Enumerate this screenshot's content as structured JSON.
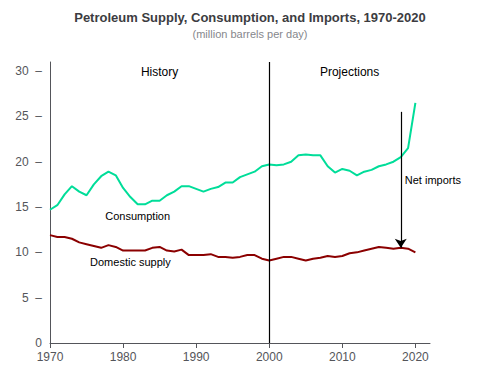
{
  "chart_data": {
    "type": "line",
    "title": "Petroleum Supply, Consumption, and Imports, 1970-2020",
    "subtitle": "(million barrels per day)",
    "x": [
      1970,
      1971,
      1972,
      1973,
      1974,
      1975,
      1976,
      1977,
      1978,
      1979,
      1980,
      1981,
      1982,
      1983,
      1984,
      1985,
      1986,
      1987,
      1988,
      1989,
      1990,
      1991,
      1992,
      1993,
      1994,
      1995,
      1996,
      1997,
      1998,
      1999,
      2000,
      2001,
      2002,
      2003,
      2004,
      2005,
      2006,
      2007,
      2008,
      2009,
      2010,
      2011,
      2012,
      2013,
      2014,
      2015,
      2016,
      2017,
      2018,
      2019,
      2020
    ],
    "series": [
      {
        "name": "Consumption",
        "color": "#00DD99",
        "values": [
          14.7,
          15.2,
          16.4,
          17.3,
          16.7,
          16.3,
          17.5,
          18.4,
          18.9,
          18.5,
          17.1,
          16.1,
          15.3,
          15.3,
          15.7,
          15.7,
          16.3,
          16.7,
          17.3,
          17.3,
          17.0,
          16.7,
          17.0,
          17.2,
          17.7,
          17.7,
          18.3,
          18.6,
          18.9,
          19.5,
          19.7,
          19.6,
          19.7,
          20.0,
          20.7,
          20.8,
          20.7,
          20.7,
          19.5,
          18.8,
          19.2,
          19.0,
          18.5,
          18.9,
          19.1,
          19.5,
          19.7,
          20.0,
          20.5,
          21.5,
          26.5
        ]
      },
      {
        "name": "Domestic supply",
        "color": "#8B0000",
        "values": [
          11.9,
          11.7,
          11.7,
          11.5,
          11.1,
          10.9,
          10.7,
          10.5,
          10.8,
          10.6,
          10.2,
          10.2,
          10.2,
          10.2,
          10.5,
          10.6,
          10.2,
          10.1,
          10.3,
          9.7,
          9.7,
          9.7,
          9.8,
          9.5,
          9.5,
          9.4,
          9.5,
          9.7,
          9.7,
          9.3,
          9.1,
          9.3,
          9.5,
          9.5,
          9.3,
          9.1,
          9.3,
          9.4,
          9.6,
          9.5,
          9.6,
          9.9,
          10.0,
          10.2,
          10.4,
          10.6,
          10.5,
          10.4,
          10.5,
          10.4,
          10.0
        ]
      }
    ],
    "xlim": [
      1970,
      2022
    ],
    "xticks": [
      1970,
      1980,
      1990,
      2000,
      2010,
      2020
    ],
    "ylim": [
      0,
      31
    ],
    "yticks": [
      0,
      {
        "value": 5,
        "label": "5  –"
      },
      {
        "value": 10,
        "label": "10  –"
      },
      {
        "value": 15,
        "label": "15  –"
      },
      {
        "value": 20,
        "label": "20  –"
      },
      {
        "value": 25,
        "label": "25  –"
      },
      {
        "value": 30,
        "label": "30  –"
      }
    ],
    "grid": false,
    "divider": {
      "x": 2000,
      "labels": [
        "History",
        "Projections"
      ]
    },
    "net_imports": {
      "label": "Net imports",
      "x": 2018,
      "from": 25.5,
      "to": 10.5
    }
  }
}
